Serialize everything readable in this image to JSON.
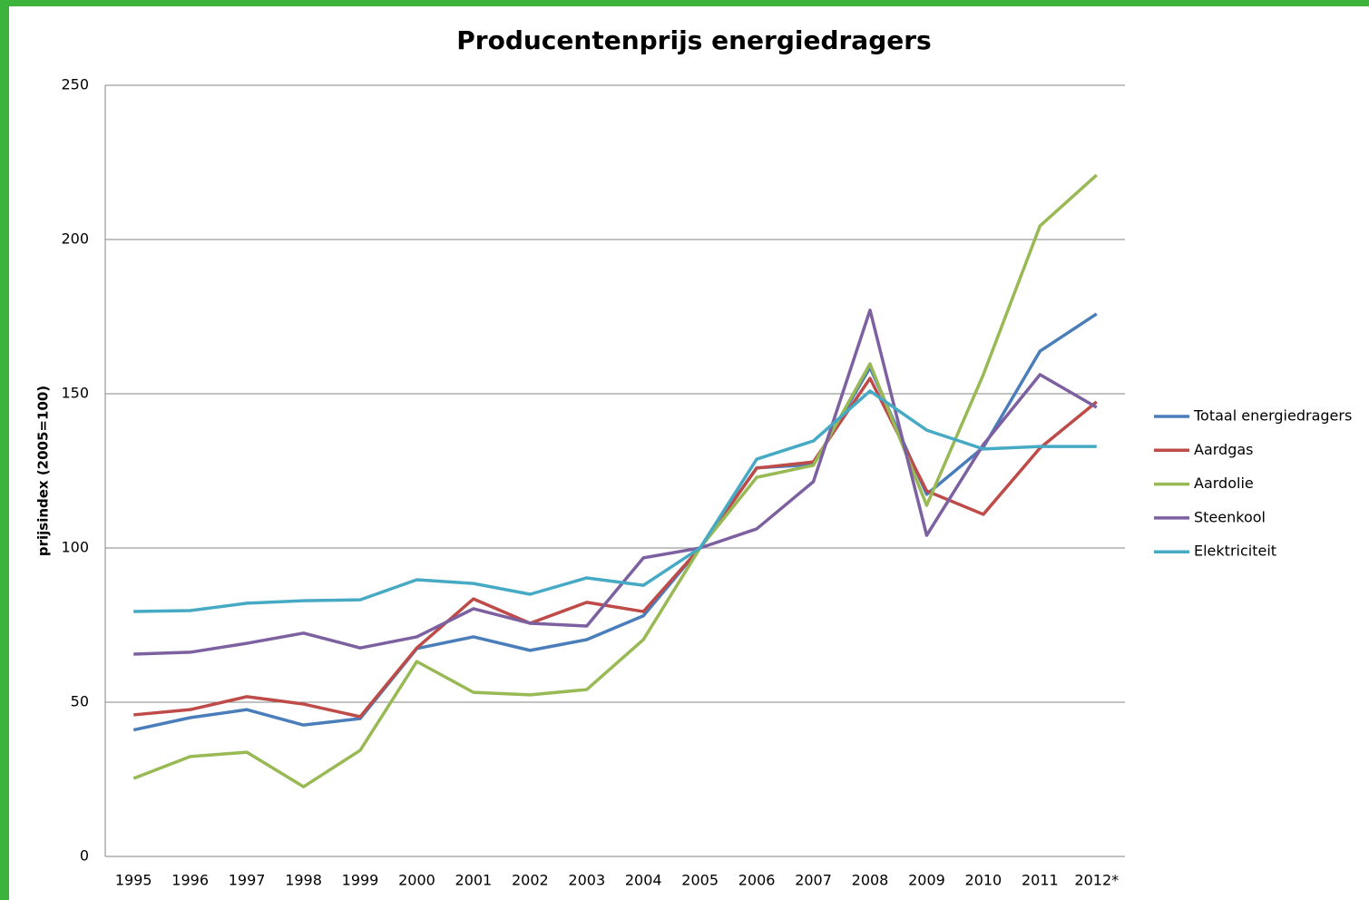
{
  "chart_data": {
    "type": "line",
    "title": "Producentenprijs energiedragers",
    "y_label": "prijsindex (2005=100)",
    "categories": [
      "1995",
      "1996",
      "1997",
      "1998",
      "1999",
      "2000",
      "2001",
      "2002",
      "2003",
      "2004",
      "2005",
      "2006",
      "2007",
      "2008",
      "2009",
      "2010",
      "2011",
      "2012*"
    ],
    "series": [
      {
        "name": "Totaal energiedragers",
        "color": "#4a7ebb",
        "values": [
          41,
          45,
          47.6,
          42.6,
          44.7,
          67.4,
          71.2,
          66.8,
          70.3,
          78,
          100,
          126,
          127,
          158.5,
          117.4,
          132.6,
          163.8,
          175.9
        ]
      },
      {
        "name": "Aardgas",
        "color": "#be4b48",
        "values": [
          45.9,
          47.6,
          51.8,
          49.4,
          45.3,
          67.6,
          83.5,
          75.6,
          82.4,
          79.4,
          100,
          125.9,
          127.9,
          155,
          118.5,
          110.9,
          132.4,
          147.4
        ]
      },
      {
        "name": "Aardolie",
        "color": "#98b954",
        "values": [
          25.3,
          32.4,
          33.8,
          22.6,
          34.4,
          63.2,
          53.2,
          52.4,
          54.1,
          70.3,
          100,
          122.9,
          126.8,
          159.7,
          113.8,
          156.2,
          204.4,
          220.9
        ]
      },
      {
        "name": "Steenkool",
        "color": "#7d60a0",
        "values": [
          65.6,
          66.2,
          69.1,
          72.4,
          67.6,
          71.2,
          80.3,
          75.6,
          74.7,
          96.8,
          100,
          106.2,
          121.5,
          177.1,
          104.1,
          133.5,
          156.2,
          145.6
        ]
      },
      {
        "name": "Elektriciteit",
        "color": "#46aac5",
        "values": [
          79.4,
          79.7,
          82.1,
          82.9,
          83.2,
          89.7,
          88.5,
          85,
          90.3,
          87.9,
          100,
          128.8,
          134.7,
          150.9,
          138.2,
          132.1,
          132.9,
          132.9
        ]
      }
    ],
    "ylim": [
      0,
      250
    ],
    "yticks": [
      0,
      50,
      100,
      150,
      200,
      250
    ],
    "grid": true,
    "legend": "right"
  }
}
